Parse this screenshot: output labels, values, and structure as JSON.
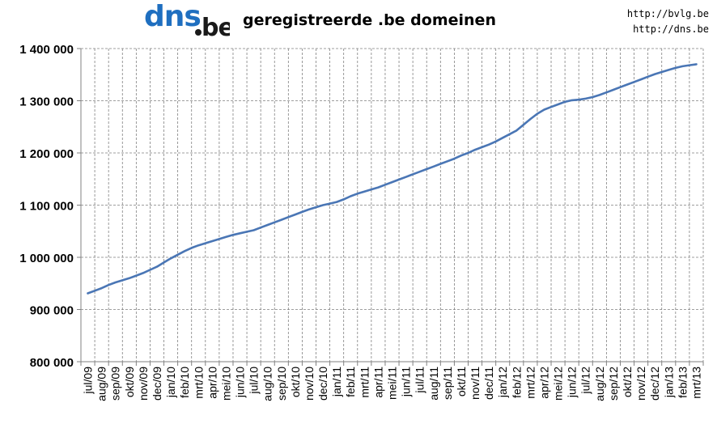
{
  "header": {
    "logo_text": "dns.be",
    "title": "geregistreerde .be domeinen",
    "links": [
      "http://bvlg.be",
      "http://dns.be"
    ]
  },
  "colors": {
    "line": "#4a76b5",
    "logo_blue": "#1f6fc0",
    "logo_dark": "#1a1a1a",
    "grid": "#808080"
  },
  "chart_data": {
    "type": "line",
    "title": "geregistreerde .be domeinen",
    "xlabel": "",
    "ylabel": "",
    "ylim": [
      800000,
      1400000
    ],
    "y_ticks": [
      800000,
      900000,
      1000000,
      1100000,
      1200000,
      1300000,
      1400000
    ],
    "y_tick_labels": [
      "800 000",
      "900 000",
      "1 000 000",
      "1 100 000",
      "1 200 000",
      "1 300 000",
      "1 400 000"
    ],
    "grid": true,
    "legend": "none",
    "categories": [
      "jul/09",
      "aug/09",
      "sep/09",
      "okt/09",
      "nov/09",
      "dec/09",
      "jan/10",
      "feb/10",
      "mrt/10",
      "apr/10",
      "mei/10",
      "jun/10",
      "jul/10",
      "aug/10",
      "sep/10",
      "okt/10",
      "nov/10",
      "dec/10",
      "jan/11",
      "feb/11",
      "mrt/11",
      "apr/11",
      "mei/11",
      "jun/11",
      "jul/11",
      "aug/11",
      "sep/11",
      "okt/11",
      "nov/11",
      "dec/11",
      "jan/12",
      "feb/12",
      "mrt/12",
      "apr/12",
      "mei/12",
      "jun/12",
      "jul/12",
      "aug/12",
      "sep/12",
      "okt/12",
      "nov/12",
      "dec/12",
      "jan/13",
      "feb/13",
      "mrt/13"
    ],
    "points": [
      [
        "jul/09",
        931000
      ],
      [
        "",
        936000
      ],
      [
        "aug/09",
        941000
      ],
      [
        "",
        947000
      ],
      [
        "sep/09",
        952000
      ],
      [
        "",
        956000
      ],
      [
        "okt/09",
        960000
      ],
      [
        "",
        965000
      ],
      [
        "nov/09",
        970000
      ],
      [
        "",
        976000
      ],
      [
        "dec/09",
        982000
      ],
      [
        "",
        990000
      ],
      [
        "jan/10",
        998000
      ],
      [
        "",
        1005000
      ],
      [
        "feb/10",
        1012000
      ],
      [
        "",
        1018000
      ],
      [
        "mrt/10",
        1023000
      ],
      [
        "",
        1027000
      ],
      [
        "apr/10",
        1031000
      ],
      [
        "",
        1035000
      ],
      [
        "mei/10",
        1039000
      ],
      [
        "",
        1043000
      ],
      [
        "jun/10",
        1046000
      ],
      [
        "",
        1049000
      ],
      [
        "jul/10",
        1052000
      ],
      [
        "",
        1057000
      ],
      [
        "aug/10",
        1062000
      ],
      [
        "",
        1067000
      ],
      [
        "sep/10",
        1072000
      ],
      [
        "",
        1077000
      ],
      [
        "okt/10",
        1082000
      ],
      [
        "",
        1087000
      ],
      [
        "nov/10",
        1092000
      ],
      [
        "",
        1096000
      ],
      [
        "dec/10",
        1100000
      ],
      [
        "",
        1103000
      ],
      [
        "jan/11",
        1106000
      ],
      [
        "",
        1111000
      ],
      [
        "feb/11",
        1117000
      ],
      [
        "",
        1122000
      ],
      [
        "mrt/11",
        1126000
      ],
      [
        "",
        1130000
      ],
      [
        "apr/11",
        1134000
      ],
      [
        "",
        1139000
      ],
      [
        "mei/11",
        1144000
      ],
      [
        "",
        1149000
      ],
      [
        "jun/11",
        1154000
      ],
      [
        "",
        1159000
      ],
      [
        "jul/11",
        1164000
      ],
      [
        "",
        1169000
      ],
      [
        "aug/11",
        1174000
      ],
      [
        "",
        1179000
      ],
      [
        "sep/11",
        1184000
      ],
      [
        "",
        1189000
      ],
      [
        "okt/11",
        1195000
      ],
      [
        "",
        1200000
      ],
      [
        "nov/11",
        1206000
      ],
      [
        "",
        1211000
      ],
      [
        "dec/11",
        1216000
      ],
      [
        "",
        1222000
      ],
      [
        "jan/12",
        1229000
      ],
      [
        "",
        1236000
      ],
      [
        "feb/12",
        1243000
      ],
      [
        "",
        1254000
      ],
      [
        "mrt/12",
        1265000
      ],
      [
        "",
        1275000
      ],
      [
        "apr/12",
        1283000
      ],
      [
        "",
        1288000
      ],
      [
        "mei/12",
        1293000
      ],
      [
        "",
        1298000
      ],
      [
        "jun/12",
        1301000
      ],
      [
        "",
        1302000
      ],
      [
        "jul/12",
        1304000
      ],
      [
        "",
        1307000
      ],
      [
        "aug/12",
        1311000
      ],
      [
        "",
        1316000
      ],
      [
        "sep/12",
        1321000
      ],
      [
        "",
        1326000
      ],
      [
        "okt/12",
        1331000
      ],
      [
        "",
        1336000
      ],
      [
        "nov/12",
        1341000
      ],
      [
        "",
        1346000
      ],
      [
        "dec/12",
        1351000
      ],
      [
        "",
        1355000
      ],
      [
        "jan/13",
        1359000
      ],
      [
        "",
        1363000
      ],
      [
        "feb/13",
        1366000
      ],
      [
        "",
        1368000
      ],
      [
        "mrt/13",
        1370000
      ]
    ]
  }
}
